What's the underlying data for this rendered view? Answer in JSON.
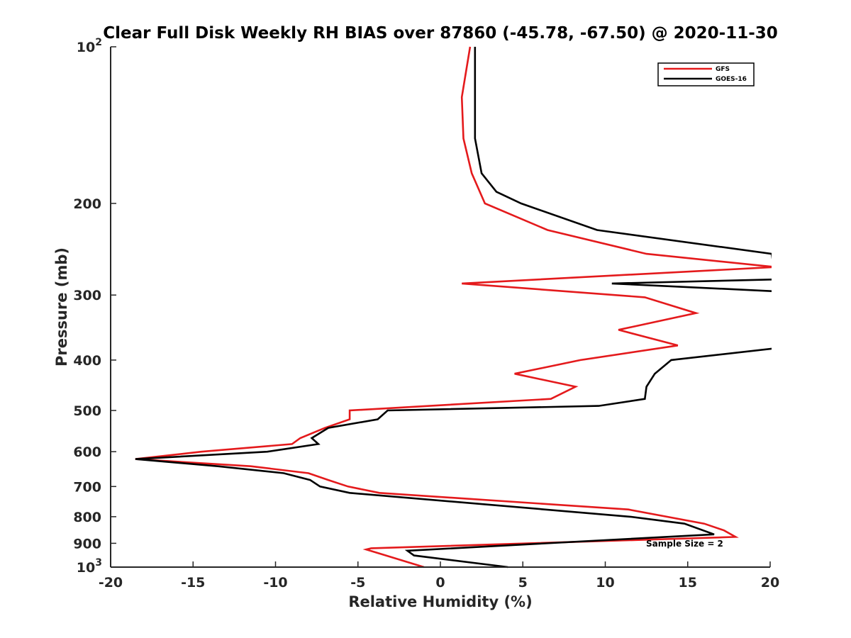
{
  "chart_data": {
    "type": "line",
    "title": "Clear Full Disk Weekly RH BIAS over 87860 (-45.78, -67.50) @ 2020-11-30",
    "xlabel": "Relative Humidity (%)",
    "ylabel": "Pressure (mb)",
    "xlim": [
      -20,
      20
    ],
    "ylim": [
      100,
      1000
    ],
    "y_scale": "log",
    "y_reversed": true,
    "x_ticks": [
      -20,
      -15,
      -10,
      -5,
      0,
      5,
      10,
      15,
      20
    ],
    "x_tick_labels": [
      "-20",
      "-15",
      "-10",
      "-5",
      "0",
      "5",
      "10",
      "15",
      "20"
    ],
    "y_ticks": [
      200,
      300,
      400,
      500,
      600,
      700,
      800,
      900
    ],
    "y_tick_labels": [
      "200",
      "300",
      "400",
      "500",
      "600",
      "700",
      "800",
      "900"
    ],
    "y_end_labels": {
      "top": {
        "base": "10",
        "exp": "2"
      },
      "bottom": {
        "base": "10",
        "exp": "3"
      }
    },
    "grid": false,
    "legend_position": "top-right",
    "annotation": "Sample Size = 2",
    "series": [
      {
        "name": "GFS",
        "color": "#e41a1c",
        "points": [
          [
            1.8,
            100
          ],
          [
            1.3,
            125
          ],
          [
            1.4,
            150
          ],
          [
            1.9,
            175
          ],
          [
            2.7,
            200
          ],
          [
            6.5,
            225
          ],
          [
            12.5,
            250
          ],
          [
            20.3,
            265
          ],
          [
            1.3,
            285
          ],
          [
            12.4,
            303
          ],
          [
            15.5,
            325
          ],
          [
            10.8,
            350
          ],
          [
            14.4,
            375
          ],
          [
            8.5,
            400
          ],
          [
            4.5,
            425
          ],
          [
            8.2,
            450
          ],
          [
            6.7,
            475
          ],
          [
            -5.5,
            500
          ],
          [
            -5.5,
            520
          ],
          [
            -7.0,
            540
          ],
          [
            -8.5,
            565
          ],
          [
            -9.0,
            580
          ],
          [
            -14.5,
            600
          ],
          [
            -18.5,
            620
          ],
          [
            -11.5,
            640
          ],
          [
            -8.0,
            660
          ],
          [
            -6.8,
            680
          ],
          [
            -5.6,
            700
          ],
          [
            -3.7,
            720
          ],
          [
            11.4,
            775
          ],
          [
            16.0,
            825
          ],
          [
            17.2,
            850
          ],
          [
            17.9,
            875
          ],
          [
            -4.2,
            920
          ],
          [
            -4.5,
            925
          ],
          [
            -3.3,
            950
          ],
          [
            -1.0,
            1000
          ]
        ]
      },
      {
        "name": "GOES-16",
        "color": "#000000",
        "points": [
          [
            2.1,
            100
          ],
          [
            2.1,
            150
          ],
          [
            2.5,
            175
          ],
          [
            3.4,
            190
          ],
          [
            4.9,
            200
          ],
          [
            9.5,
            225
          ],
          [
            20.1,
            250
          ],
          [
            20.3,
            280
          ],
          [
            10.4,
            285
          ],
          [
            20.2,
            295
          ],
          [
            20.2,
            380
          ],
          [
            14.0,
            400
          ],
          [
            13.0,
            425
          ],
          [
            12.5,
            450
          ],
          [
            12.4,
            475
          ],
          [
            9.6,
            490
          ],
          [
            -3.2,
            500
          ],
          [
            -3.8,
            520
          ],
          [
            -6.8,
            540
          ],
          [
            -7.8,
            565
          ],
          [
            -7.4,
            580
          ],
          [
            -10.5,
            600
          ],
          [
            -18.5,
            620
          ],
          [
            -13.5,
            640
          ],
          [
            -9.5,
            660
          ],
          [
            -7.9,
            680
          ],
          [
            -7.3,
            700
          ],
          [
            -5.5,
            720
          ],
          [
            11.5,
            800
          ],
          [
            14.8,
            825
          ],
          [
            16.6,
            865
          ],
          [
            -2.0,
            930
          ],
          [
            -1.6,
            950
          ],
          [
            4.1,
            1000
          ]
        ]
      }
    ]
  }
}
